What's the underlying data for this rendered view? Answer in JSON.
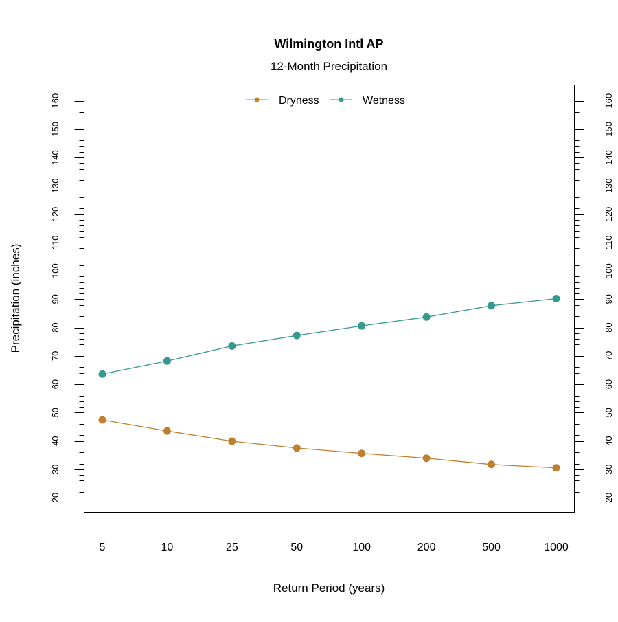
{
  "chart_data": {
    "type": "line",
    "title": "Wilmington Intl AP",
    "subtitle": "12-Month Precipitation",
    "xlabel": "Return Period (years)",
    "ylabel": "Precipitation (inches)",
    "categories": [
      "5",
      "10",
      "25",
      "50",
      "100",
      "200",
      "500",
      "1000"
    ],
    "ylim": [
      14.8,
      165.6
    ],
    "yticks": [
      20,
      30,
      40,
      50,
      60,
      70,
      80,
      90,
      100,
      110,
      120,
      130,
      140,
      150,
      160
    ],
    "y_minor_step": 2,
    "grid": false,
    "legend": "top-center",
    "series": [
      {
        "name": "Dryness",
        "color": "#C07F2F",
        "values": [
          47.4,
          43.5,
          39.9,
          37.5,
          35.6,
          33.9,
          31.7,
          30.5
        ]
      },
      {
        "name": "Wetness",
        "color": "#35998F",
        "values": [
          63.6,
          68.2,
          73.5,
          77.2,
          80.6,
          83.7,
          87.7,
          90.2
        ]
      }
    ]
  }
}
